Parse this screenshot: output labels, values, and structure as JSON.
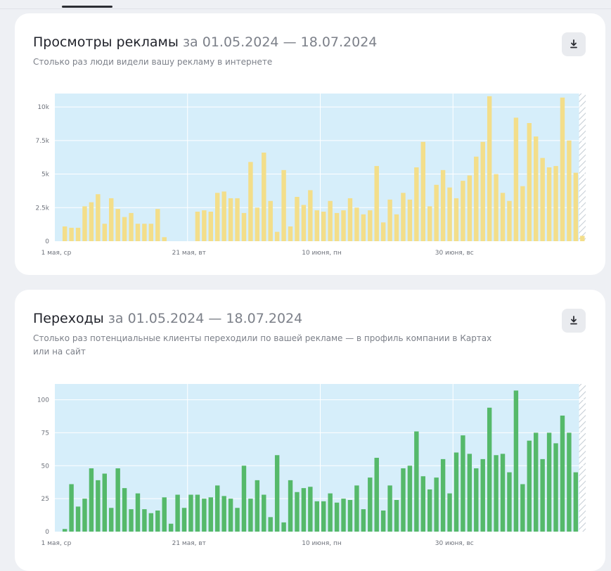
{
  "colors": {
    "plot_bg": "#d6eefa",
    "views_bar": "#f3de8a",
    "clicks_bar": "#55b96a",
    "hatch": "#c4ccd4",
    "grid": "#ffffff"
  },
  "views_card": {
    "title": "Просмотры рекламы",
    "period": "за 01.05.2024 — 18.07.2024",
    "subtitle": "Столько раз люди видели вашу рекламу в интернете",
    "download_icon": "download-icon"
  },
  "clicks_card": {
    "title": "Переходы",
    "period": "за 01.05.2024 — 18.07.2024",
    "subtitle": "Столько раз потенциальные клиенты переходили по вашей рекламе — в профиль компании в Картах или на сайт",
    "download_icon": "download-icon"
  },
  "chart_data": [
    {
      "type": "bar",
      "x_tick_labels": [
        "1 мая, ср",
        "21 мая, вт",
        "10 июня, пн",
        "30 июня, вс"
      ],
      "x_tick_positions": [
        0,
        20,
        40,
        60
      ],
      "y_ticks": [
        0,
        2500,
        5000,
        7500,
        10000
      ],
      "y_tick_labels": [
        "0",
        "2.5k",
        "5k",
        "7.5k",
        "10k"
      ],
      "ylim": [
        0,
        11000
      ],
      "x_count": 80,
      "values": [
        0,
        1100,
        1000,
        1000,
        2600,
        2900,
        3500,
        1300,
        3200,
        2400,
        1800,
        2100,
        1300,
        1300,
        1300,
        2400,
        300,
        0,
        0,
        0,
        0,
        2200,
        2300,
        2200,
        3600,
        3700,
        3200,
        3200,
        2100,
        5900,
        2500,
        6600,
        3000,
        700,
        5300,
        1100,
        3300,
        2700,
        3800,
        2300,
        2200,
        3000,
        2100,
        2300,
        3200,
        2500,
        2000,
        2300,
        5600,
        1400,
        3100,
        2000,
        3600,
        3100,
        5500,
        7400,
        2600,
        4200,
        5300,
        4000,
        3200,
        4500,
        4900,
        6300,
        7400,
        10800,
        5000,
        3600,
        3000,
        9200,
        4100,
        8800,
        7800,
        6200,
        5500,
        5600,
        10700,
        7500,
        5100,
        400
      ],
      "hatched_from": 79,
      "grid": true
    },
    {
      "type": "bar",
      "x_tick_labels": [
        "1 мая, ср",
        "21 мая, вт",
        "10 июня, пн",
        "30 июня, вс"
      ],
      "x_tick_positions": [
        0,
        20,
        40,
        60
      ],
      "y_ticks": [
        0,
        25,
        50,
        75,
        100
      ],
      "y_tick_labels": [
        "0",
        "25",
        "50",
        "75",
        "100"
      ],
      "ylim": [
        0,
        112
      ],
      "x_count": 80,
      "values": [
        0,
        2,
        36,
        19,
        25,
        48,
        39,
        44,
        18,
        48,
        33,
        17,
        29,
        17,
        14,
        16,
        26,
        6,
        28,
        18,
        28,
        28,
        25,
        26,
        35,
        27,
        25,
        18,
        50,
        25,
        39,
        28,
        11,
        58,
        7,
        39,
        30,
        33,
        34,
        23,
        23,
        29,
        22,
        25,
        24,
        35,
        17,
        41,
        56,
        16,
        35,
        24,
        48,
        50,
        76,
        42,
        32,
        41,
        55,
        29,
        60,
        73,
        59,
        48,
        55,
        94,
        58,
        59,
        45,
        107,
        36,
        69,
        75,
        55,
        75,
        67,
        88,
        75,
        45,
        0
      ],
      "hatched_from": 79,
      "grid": true
    }
  ]
}
